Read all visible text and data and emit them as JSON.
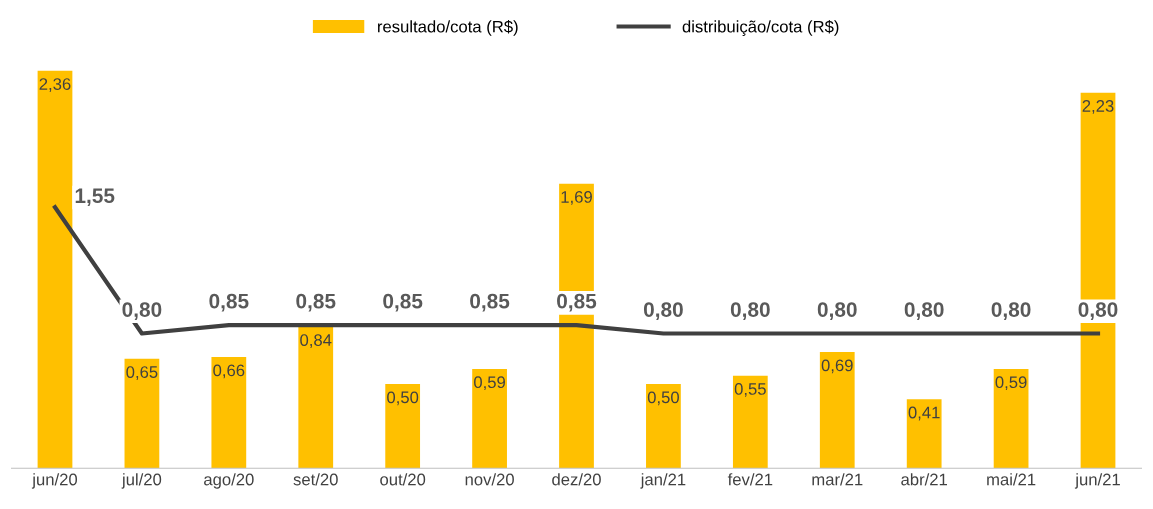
{
  "chart_data": {
    "type": "bar",
    "categories": [
      "jun/20",
      "jul/20",
      "ago/20",
      "set/20",
      "out/20",
      "nov/20",
      "dez/20",
      "jan/21",
      "fev/21",
      "mar/21",
      "abr/21",
      "mai/21",
      "jun/21"
    ],
    "series": [
      {
        "name": "resultado/cota (R$)",
        "color": "#ffc000",
        "values": [
          2.36,
          0.65,
          0.66,
          0.84,
          0.5,
          0.59,
          1.69,
          0.5,
          0.55,
          0.69,
          0.41,
          0.59,
          2.23
        ],
        "value_labels": [
          "2,36",
          "0,65",
          "0,66",
          "0,84",
          "0,50",
          "0,59",
          "1,69",
          "0,50",
          "0,55",
          "0,69",
          "0,41",
          "0,59",
          "2,23"
        ]
      },
      {
        "name": "distribuição/cota (R$)",
        "type": "line",
        "color": "#404040",
        "values": [
          1.55,
          0.8,
          0.85,
          0.85,
          0.85,
          0.85,
          0.85,
          0.8,
          0.8,
          0.8,
          0.8,
          0.8,
          0.8
        ],
        "value_labels": [
          "1,55",
          "0,80",
          "0,85",
          "0,85",
          "0,85",
          "0,85",
          "0,85",
          "0,80",
          "0,80",
          "0,80",
          "0,80",
          "0,80",
          "0,80"
        ]
      }
    ],
    "legend": "top"
  }
}
